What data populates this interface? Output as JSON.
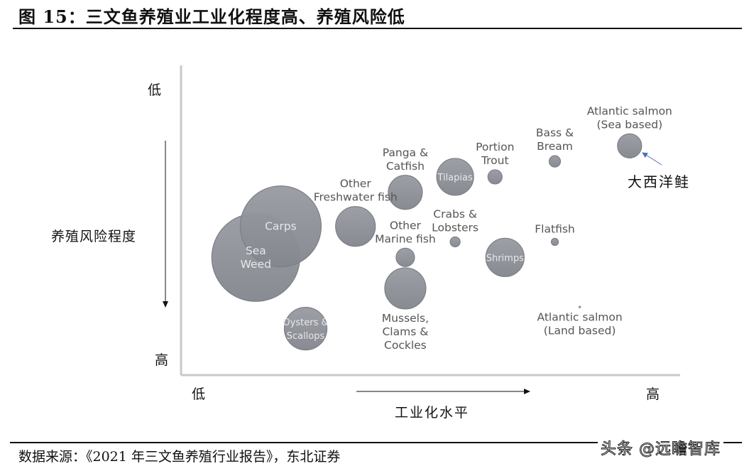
{
  "figure": {
    "title": "图 15：三文鱼养殖业工业化程度高、养殖风险低",
    "source": "数据来源：《2021 年三文鱼养殖行业报告》，东北证券",
    "watermark": "头条 @远瞻智库"
  },
  "axes": {
    "y_label": "养殖风险程度",
    "y_top": "低",
    "y_bottom": "高",
    "x_label": "工业化水平",
    "x_left": "低",
    "x_right": "高"
  },
  "annotation": {
    "text": "大西洋鲑",
    "target": "Atlantic salmon (Sea based)"
  },
  "colors": {
    "bubble": "#8e9098",
    "bubble_stroke": "#7d7f87",
    "label": "#555555",
    "inner_label": "#e8e8ea",
    "arrow": "#4a6fb5",
    "axis_line": "#c8c8c8"
  },
  "chart_data": {
    "type": "bubble",
    "title": "三文鱼养殖业工业化程度高、养殖风险低",
    "xlabel": "工业化水平 (低 → 高)",
    "ylabel": "养殖风险程度 (低 → 高, 向下递增)",
    "x_range": [
      0,
      100
    ],
    "y_range": [
      0,
      100
    ],
    "grid": false,
    "legend": "none",
    "points": [
      {
        "name": "Sea Weed",
        "label_lines": [
          "Sea",
          "Weed"
        ],
        "x": 15,
        "y": 62,
        "size": 62,
        "label_pos": "inside"
      },
      {
        "name": "Carps",
        "label_lines": [
          "Carps"
        ],
        "x": 20,
        "y": 52,
        "size": 57,
        "label_pos": "inside"
      },
      {
        "name": "Oysters & Scallops",
        "label_lines": [
          "Oysters &",
          "Scallops"
        ],
        "x": 25,
        "y": 85,
        "size": 30,
        "label_pos": "inside"
      },
      {
        "name": "Other Freshwater fish",
        "label_lines": [
          "Other",
          "Freshwater fish"
        ],
        "x": 35,
        "y": 52,
        "size": 28,
        "label_pos": "above"
      },
      {
        "name": "Panga & Catfish",
        "label_lines": [
          "Panga &",
          "Catfish"
        ],
        "x": 45,
        "y": 41,
        "size": 24,
        "label_pos": "above"
      },
      {
        "name": "Tilapias",
        "label_lines": [
          "Tilapias"
        ],
        "x": 55,
        "y": 36,
        "size": 26,
        "label_pos": "inside"
      },
      {
        "name": "Portion Trout",
        "label_lines": [
          "Portion",
          "Trout"
        ],
        "x": 63,
        "y": 36,
        "size": 10,
        "label_pos": "above"
      },
      {
        "name": "Other Marine fish",
        "label_lines": [
          "Other",
          "Marine fish"
        ],
        "x": 45,
        "y": 62,
        "size": 13,
        "label_pos": "above"
      },
      {
        "name": "Mussels, Clams & Cockles",
        "label_lines": [
          "Mussels,",
          "Clams &",
          "Cockles"
        ],
        "x": 45,
        "y": 72,
        "size": 29,
        "label_pos": "below"
      },
      {
        "name": "Crabs & Lobsters",
        "label_lines": [
          "Crabs &",
          "Lobsters"
        ],
        "x": 55,
        "y": 57,
        "size": 7,
        "label_pos": "above"
      },
      {
        "name": "Shrimps",
        "label_lines": [
          "Shrimps"
        ],
        "x": 65,
        "y": 62,
        "size": 27,
        "label_pos": "inside"
      },
      {
        "name": "Bass & Bream",
        "label_lines": [
          "Bass &",
          "Bream"
        ],
        "x": 75,
        "y": 31,
        "size": 8,
        "label_pos": "above"
      },
      {
        "name": "Atlantic salmon (Sea based)",
        "label_lines": [
          "Atlantic salmon",
          "(Sea based)"
        ],
        "x": 90,
        "y": 26,
        "size": 17,
        "label_pos": "above"
      },
      {
        "name": "Flatfish",
        "label_lines": [
          "Flatfish"
        ],
        "x": 75,
        "y": 57,
        "size": 5,
        "label_pos": "above"
      },
      {
        "name": "Atlantic salmon (Land based)",
        "label_lines": [
          "Atlantic salmon",
          "(Land based)"
        ],
        "x": 80,
        "y": 78,
        "size": 1.5,
        "label_pos": "below"
      }
    ]
  }
}
